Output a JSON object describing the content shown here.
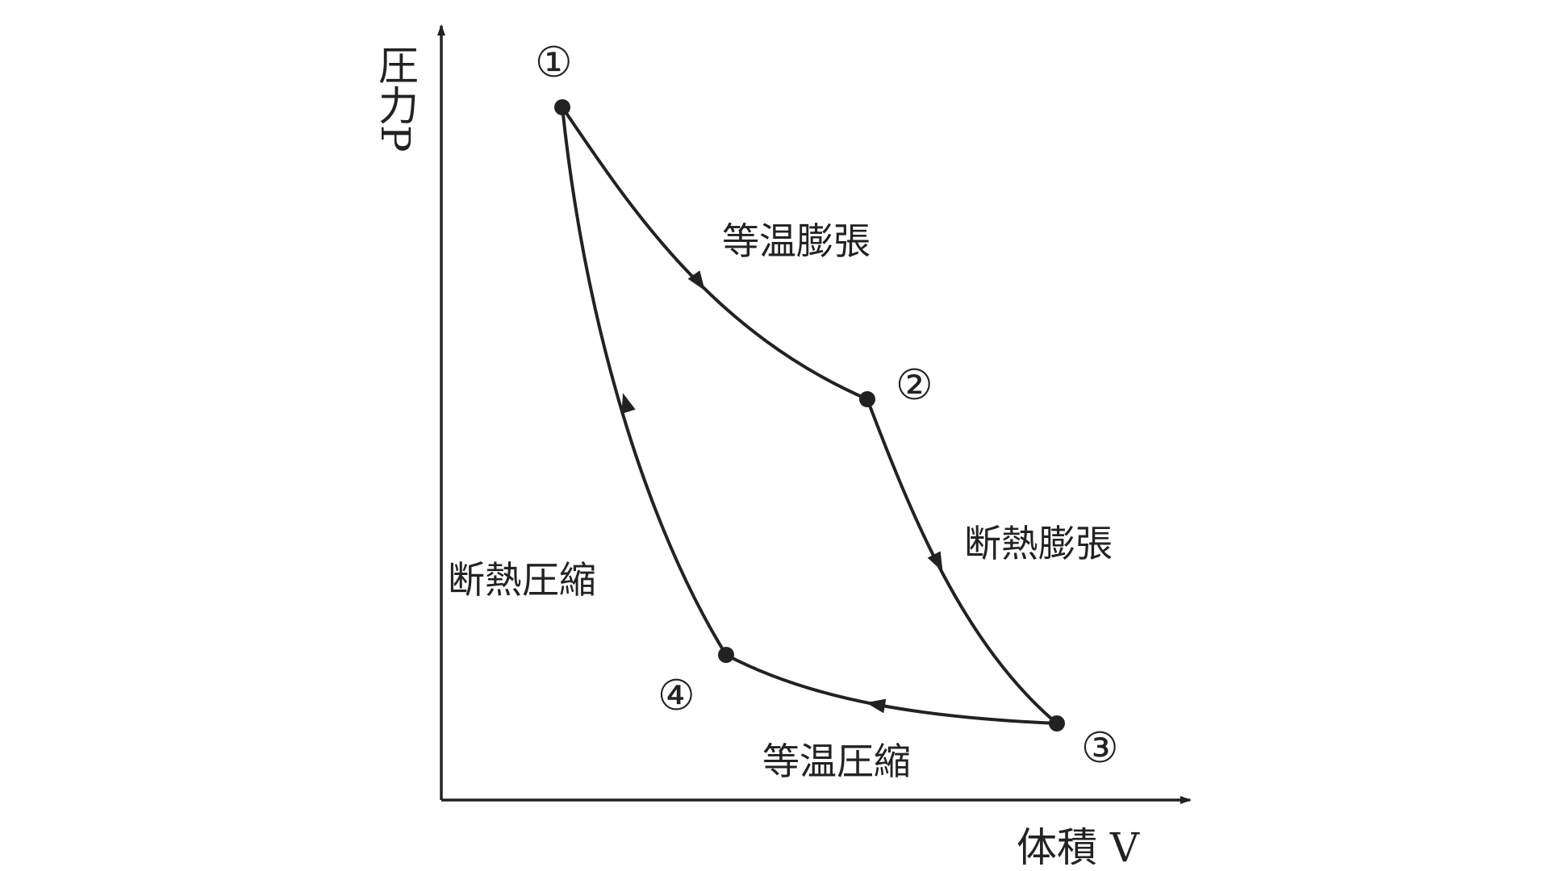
{
  "axes": {
    "y_label": "圧力P",
    "x_label": "体積 V"
  },
  "points": [
    {
      "id": "1",
      "label": "①"
    },
    {
      "id": "2",
      "label": "②"
    },
    {
      "id": "3",
      "label": "③"
    },
    {
      "id": "4",
      "label": "④"
    }
  ],
  "processes": {
    "isothermal_expansion": "等温膨張",
    "adiabatic_expansion": "断熱膨張",
    "isothermal_compression": "等温圧縮",
    "adiabatic_compression": "断熱圧縮"
  },
  "colors": {
    "ink": "#222222",
    "background": "#ffffff"
  }
}
